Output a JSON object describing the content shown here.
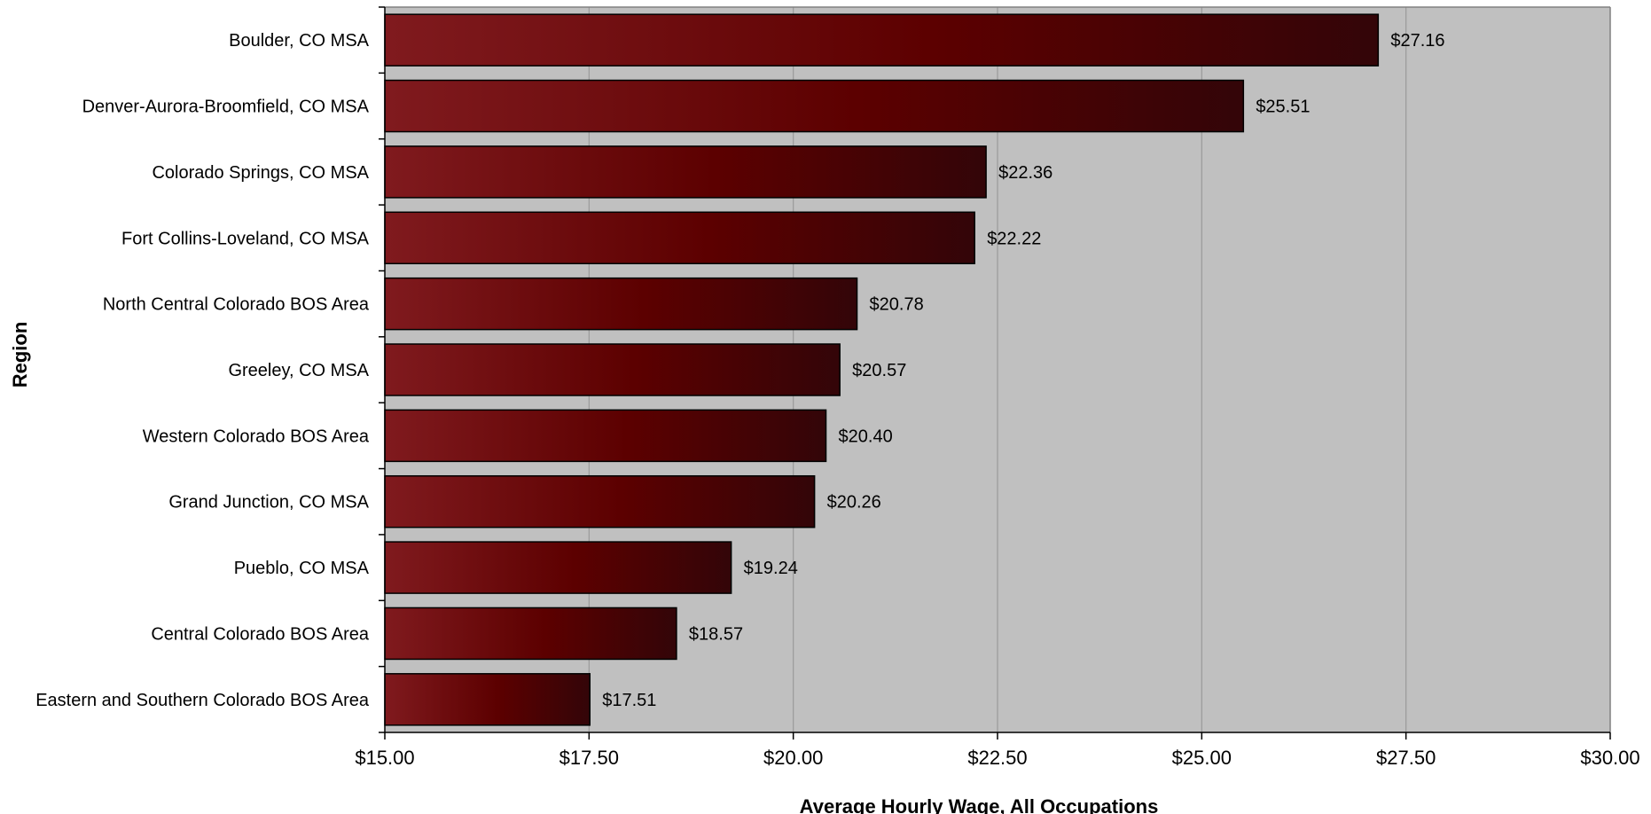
{
  "chart_data": {
    "type": "bar",
    "orientation": "horizontal",
    "categories": [
      "Boulder, CO MSA",
      "Denver-Aurora-Broomfield, CO MSA",
      "Colorado Springs, CO MSA",
      "Fort Collins-Loveland, CO MSA",
      "North Central Colorado BOS Area",
      "Greeley, CO MSA",
      "Western Colorado BOS Area",
      "Grand Junction, CO MSA",
      "Pueblo, CO MSA",
      "Central Colorado BOS Area",
      "Eastern and Southern Colorado BOS Area"
    ],
    "values": [
      27.16,
      25.51,
      22.36,
      22.22,
      20.78,
      20.57,
      20.4,
      20.26,
      19.24,
      18.57,
      17.51
    ],
    "data_labels": [
      "$27.16",
      "$25.51",
      "$22.36",
      "$22.22",
      "$20.78",
      "$20.57",
      "$20.40",
      "$20.26",
      "$19.24",
      "$18.57",
      "$17.51"
    ],
    "xlim": [
      15,
      30
    ],
    "x_ticks": [
      15,
      17.5,
      20,
      22.5,
      25,
      27.5,
      30
    ],
    "x_tick_labels": [
      "$15.00",
      "$17.50",
      "$20.00",
      "$22.50",
      "$25.00",
      "$27.50",
      "$30.00"
    ],
    "xlabel": "Average Hourly Wage, All Occupations",
    "ylabel": "Region",
    "title": "",
    "grid": "vertical",
    "legend": "none",
    "colors": {
      "plot_background": "#c0c0c0",
      "bar_light": "#801a1e",
      "bar_mid": "#5c0000",
      "bar_dark": "#330508",
      "gridline": "#9a9a9a",
      "axis": "#000000"
    }
  }
}
